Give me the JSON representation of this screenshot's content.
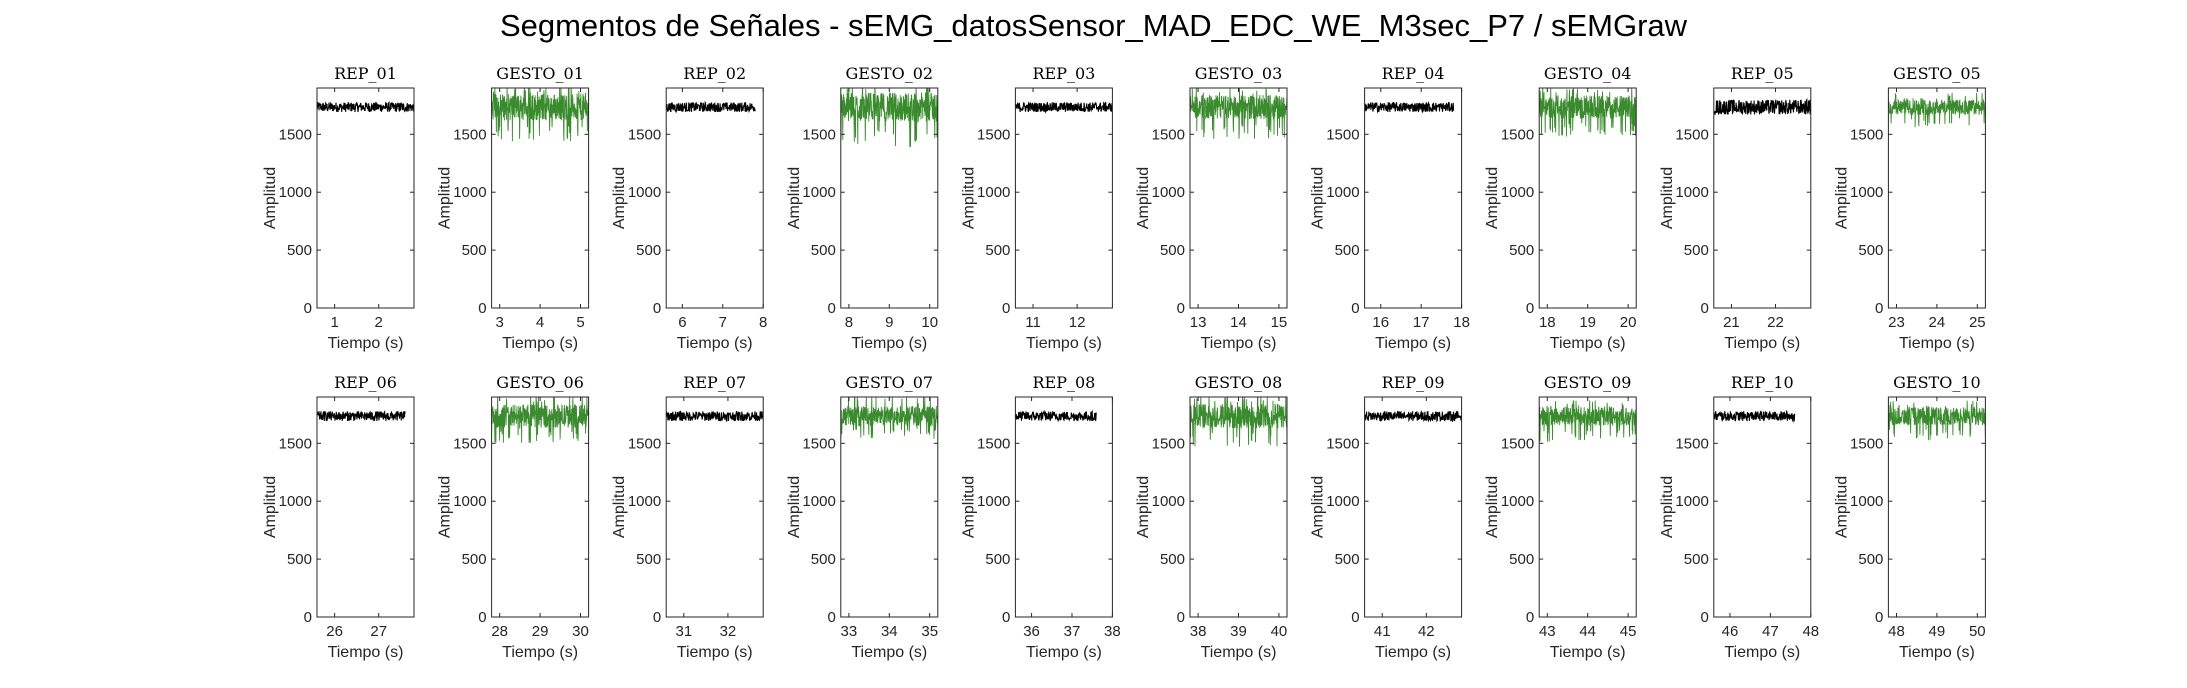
{
  "figure": {
    "title": "Segmentos de Señales - sEMG_datosSensor_MAD_EDC_WE_M3sec_P7 / sEMGraw"
  },
  "colors": {
    "rep": "#000000",
    "gesto": "#3a8a2e",
    "axis": "#262626"
  },
  "chart_data": [
    {
      "type": "line",
      "title": "REP_01",
      "xlabel": "Tiempo (s)",
      "ylabel": "Amplitud",
      "xlim": [
        0.6,
        2.8
      ],
      "ylim": [
        0,
        1900
      ],
      "x_ticks": [
        1,
        2
      ],
      "y_ticks": [
        0,
        500,
        1000,
        1500
      ],
      "signal": {
        "kind": "rep",
        "x_range": [
          0.6,
          2.8
        ],
        "baseline": 1735,
        "amplitude_range": [
          1690,
          1775
        ]
      }
    },
    {
      "type": "line",
      "title": "GESTO_01",
      "xlabel": "Tiempo (s)",
      "ylabel": "Amplitud",
      "xlim": [
        2.8,
        5.2
      ],
      "ylim": [
        0,
        1900
      ],
      "x_ticks": [
        3,
        4,
        5
      ],
      "y_ticks": [
        0,
        500,
        1000,
        1500
      ],
      "signal": {
        "kind": "gesto",
        "x_range": [
          2.8,
          5.2
        ],
        "baseline": 1735,
        "amplitude_range": [
          1440,
          1960
        ]
      }
    },
    {
      "type": "line",
      "title": "REP_02",
      "xlabel": "Tiempo (s)",
      "ylabel": "Amplitud",
      "xlim": [
        5.6,
        8
      ],
      "ylim": [
        0,
        1900
      ],
      "x_ticks": [
        6,
        7,
        8
      ],
      "y_ticks": [
        0,
        500,
        1000,
        1500
      ],
      "signal": {
        "kind": "rep",
        "x_range": [
          5.6,
          7.8
        ],
        "baseline": 1735,
        "amplitude_range": [
          1690,
          1775
        ]
      }
    },
    {
      "type": "line",
      "title": "GESTO_02",
      "xlabel": "Tiempo (s)",
      "ylabel": "Amplitud",
      "xlim": [
        7.8,
        10.2
      ],
      "ylim": [
        0,
        1900
      ],
      "x_ticks": [
        8,
        9,
        10
      ],
      "y_ticks": [
        0,
        500,
        1000,
        1500
      ],
      "signal": {
        "kind": "gesto",
        "x_range": [
          7.8,
          10.2
        ],
        "baseline": 1735,
        "amplitude_range": [
          1380,
          1940
        ]
      }
    },
    {
      "type": "line",
      "title": "REP_03",
      "xlabel": "Tiempo (s)",
      "ylabel": "Amplitud",
      "xlim": [
        10.6,
        12.8
      ],
      "ylim": [
        0,
        1900
      ],
      "x_ticks": [
        11,
        12
      ],
      "y_ticks": [
        0,
        500,
        1000,
        1500
      ],
      "signal": {
        "kind": "rep",
        "x_range": [
          10.6,
          12.8
        ],
        "baseline": 1735,
        "amplitude_range": [
          1690,
          1775
        ]
      }
    },
    {
      "type": "line",
      "title": "GESTO_03",
      "xlabel": "Tiempo (s)",
      "ylabel": "Amplitud",
      "xlim": [
        12.8,
        15.2
      ],
      "ylim": [
        0,
        1900
      ],
      "x_ticks": [
        13,
        14,
        15
      ],
      "y_ticks": [
        0,
        500,
        1000,
        1500
      ],
      "signal": {
        "kind": "gesto",
        "x_range": [
          12.8,
          15.2
        ],
        "baseline": 1735,
        "amplitude_range": [
          1460,
          1920
        ]
      }
    },
    {
      "type": "line",
      "title": "REP_04",
      "xlabel": "Tiempo (s)",
      "ylabel": "Amplitud",
      "xlim": [
        15.6,
        18
      ],
      "ylim": [
        0,
        1900
      ],
      "x_ticks": [
        16,
        17,
        18
      ],
      "y_ticks": [
        0,
        500,
        1000,
        1500
      ],
      "signal": {
        "kind": "rep",
        "x_range": [
          15.6,
          17.8
        ],
        "baseline": 1735,
        "amplitude_range": [
          1690,
          1775
        ]
      }
    },
    {
      "type": "line",
      "title": "GESTO_04",
      "xlabel": "Tiempo (s)",
      "ylabel": "Amplitud",
      "xlim": [
        17.8,
        20.2
      ],
      "ylim": [
        0,
        1900
      ],
      "x_ticks": [
        18,
        19,
        20
      ],
      "y_ticks": [
        0,
        500,
        1000,
        1500
      ],
      "signal": {
        "kind": "gesto",
        "x_range": [
          17.8,
          20.2
        ],
        "baseline": 1735,
        "amplitude_range": [
          1480,
          1930
        ]
      }
    },
    {
      "type": "line",
      "title": "REP_05",
      "xlabel": "Tiempo (s)",
      "ylabel": "Amplitud",
      "xlim": [
        20.6,
        22.8
      ],
      "ylim": [
        0,
        1900
      ],
      "x_ticks": [
        21,
        22
      ],
      "y_ticks": [
        0,
        500,
        1000,
        1500
      ],
      "signal": {
        "kind": "rep",
        "x_range": [
          20.6,
          22.8
        ],
        "baseline": 1735,
        "amplitude_range": [
          1660,
          1790
        ]
      }
    },
    {
      "type": "line",
      "title": "GESTO_05",
      "xlabel": "Tiempo (s)",
      "ylabel": "Amplitud",
      "xlim": [
        22.8,
        25.2
      ],
      "ylim": [
        0,
        1900
      ],
      "x_ticks": [
        23,
        24,
        25
      ],
      "y_ticks": [
        0,
        500,
        1000,
        1500
      ],
      "signal": {
        "kind": "gesto",
        "x_range": [
          22.8,
          25.2
        ],
        "baseline": 1735,
        "amplitude_range": [
          1560,
          1860
        ]
      }
    },
    {
      "type": "line",
      "title": "REP_06",
      "xlabel": "Tiempo (s)",
      "ylabel": "Amplitud",
      "xlim": [
        25.6,
        27.8
      ],
      "ylim": [
        0,
        1900
      ],
      "x_ticks": [
        26,
        27
      ],
      "y_ticks": [
        0,
        500,
        1000,
        1500
      ],
      "signal": {
        "kind": "rep",
        "x_range": [
          25.6,
          27.6
        ],
        "baseline": 1735,
        "amplitude_range": [
          1690,
          1775
        ]
      }
    },
    {
      "type": "line",
      "title": "GESTO_06",
      "xlabel": "Tiempo (s)",
      "ylabel": "Amplitud",
      "xlim": [
        27.8,
        30.2
      ],
      "ylim": [
        0,
        1900
      ],
      "x_ticks": [
        28,
        29,
        30
      ],
      "y_ticks": [
        0,
        500,
        1000,
        1500
      ],
      "signal": {
        "kind": "gesto",
        "x_range": [
          27.8,
          30.2
        ],
        "baseline": 1735,
        "amplitude_range": [
          1490,
          1940
        ]
      }
    },
    {
      "type": "line",
      "title": "REP_07",
      "xlabel": "Tiempo (s)",
      "ylabel": "Amplitud",
      "xlim": [
        30.6,
        32.8
      ],
      "ylim": [
        0,
        1900
      ],
      "x_ticks": [
        31,
        32
      ],
      "y_ticks": [
        0,
        500,
        1000,
        1500
      ],
      "signal": {
        "kind": "rep",
        "x_range": [
          30.6,
          32.8
        ],
        "baseline": 1735,
        "amplitude_range": [
          1690,
          1775
        ]
      }
    },
    {
      "type": "line",
      "title": "GESTO_07",
      "xlabel": "Tiempo (s)",
      "ylabel": "Amplitud",
      "xlim": [
        32.8,
        35.2
      ],
      "ylim": [
        0,
        1900
      ],
      "x_ticks": [
        33,
        34,
        35
      ],
      "y_ticks": [
        0,
        500,
        1000,
        1500
      ],
      "signal": {
        "kind": "gesto",
        "x_range": [
          32.8,
          35.2
        ],
        "baseline": 1735,
        "amplitude_range": [
          1540,
          1930
        ]
      }
    },
    {
      "type": "line",
      "title": "REP_08",
      "xlabel": "Tiempo (s)",
      "ylabel": "Amplitud",
      "xlim": [
        35.6,
        38
      ],
      "ylim": [
        0,
        1900
      ],
      "x_ticks": [
        36,
        37,
        38
      ],
      "y_ticks": [
        0,
        500,
        1000,
        1500
      ],
      "signal": {
        "kind": "rep",
        "x_range": [
          35.6,
          37.6
        ],
        "baseline": 1735,
        "amplitude_range": [
          1690,
          1775
        ]
      }
    },
    {
      "type": "line",
      "title": "GESTO_08",
      "xlabel": "Tiempo (s)",
      "ylabel": "Amplitud",
      "xlim": [
        37.8,
        40.2
      ],
      "ylim": [
        0,
        1900
      ],
      "x_ticks": [
        38,
        39,
        40
      ],
      "y_ticks": [
        0,
        500,
        1000,
        1500
      ],
      "signal": {
        "kind": "gesto",
        "x_range": [
          37.8,
          40.2
        ],
        "baseline": 1735,
        "amplitude_range": [
          1470,
          1950
        ]
      }
    },
    {
      "type": "line",
      "title": "REP_09",
      "xlabel": "Tiempo (s)",
      "ylabel": "Amplitud",
      "xlim": [
        40.6,
        42.8
      ],
      "ylim": [
        0,
        1900
      ],
      "x_ticks": [
        41,
        42
      ],
      "y_ticks": [
        0,
        500,
        1000,
        1500
      ],
      "signal": {
        "kind": "rep",
        "x_range": [
          40.6,
          42.8
        ],
        "baseline": 1735,
        "amplitude_range": [
          1690,
          1775
        ]
      }
    },
    {
      "type": "line",
      "title": "GESTO_09",
      "xlabel": "Tiempo (s)",
      "ylabel": "Amplitud",
      "xlim": [
        42.8,
        45.2
      ],
      "ylim": [
        0,
        1900
      ],
      "x_ticks": [
        43,
        44,
        45
      ],
      "y_ticks": [
        0,
        500,
        1000,
        1500
      ],
      "signal": {
        "kind": "gesto",
        "x_range": [
          42.8,
          45.2
        ],
        "baseline": 1735,
        "amplitude_range": [
          1510,
          1880
        ]
      }
    },
    {
      "type": "line",
      "title": "REP_10",
      "xlabel": "Tiempo (s)",
      "ylabel": "Amplitud",
      "xlim": [
        45.6,
        48
      ],
      "ylim": [
        0,
        1900
      ],
      "x_ticks": [
        46,
        47,
        48
      ],
      "y_ticks": [
        0,
        500,
        1000,
        1500
      ],
      "signal": {
        "kind": "rep",
        "x_range": [
          45.6,
          47.6
        ],
        "baseline": 1735,
        "amplitude_range": [
          1690,
          1775
        ]
      }
    },
    {
      "type": "line",
      "title": "GESTO_10",
      "xlabel": "Tiempo (s)",
      "ylabel": "Amplitud",
      "xlim": [
        47.8,
        50.2
      ],
      "ylim": [
        0,
        1900
      ],
      "x_ticks": [
        48,
        49,
        50
      ],
      "y_ticks": [
        0,
        500,
        1000,
        1500
      ],
      "signal": {
        "kind": "gesto",
        "x_range": [
          47.8,
          50.2
        ],
        "baseline": 1735,
        "amplitude_range": [
          1520,
          1870
        ]
      }
    }
  ]
}
